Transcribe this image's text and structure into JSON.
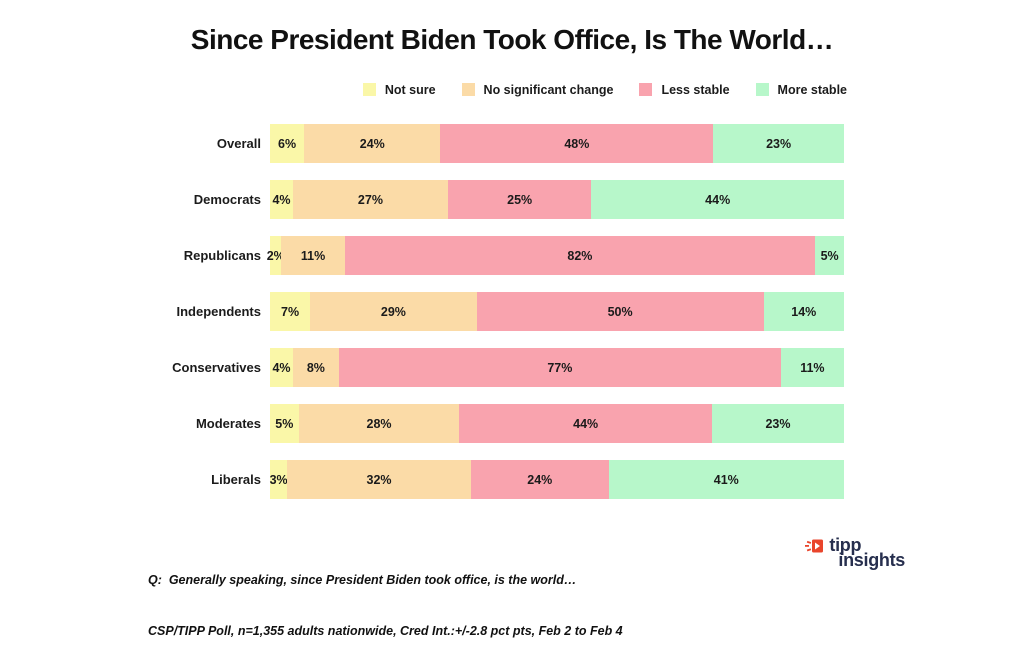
{
  "title": "Since President Biden Took Office, Is The World…",
  "legend": {
    "items": [
      {
        "label": "Not sure",
        "color": "#FAF7A8"
      },
      {
        "label": "No significant change",
        "color": "#FBDBA7"
      },
      {
        "label": "Less stable",
        "color": "#F9A3AE"
      },
      {
        "label": "More stable",
        "color": "#B7F7CA"
      }
    ]
  },
  "chart_data": {
    "type": "bar",
    "stacked": true,
    "orientation": "horizontal",
    "unit": "%",
    "title": "Since President Biden Took Office, Is The World…",
    "categories": [
      "Overall",
      "Democrats",
      "Republicans",
      "Independents",
      "Conservatives",
      "Moderates",
      "Liberals"
    ],
    "series": [
      {
        "name": "Not sure",
        "color": "#FAF7A8",
        "values": [
          6,
          4,
          2,
          7,
          4,
          5,
          3
        ]
      },
      {
        "name": "No significant change",
        "color": "#FBDBA7",
        "values": [
          24,
          27,
          11,
          29,
          8,
          28,
          32
        ]
      },
      {
        "name": "Less stable",
        "color": "#F9A3AE",
        "values": [
          48,
          25,
          82,
          50,
          77,
          44,
          24
        ]
      },
      {
        "name": "More stable",
        "color": "#B7F7CA",
        "values": [
          23,
          44,
          5,
          14,
          11,
          23,
          41
        ]
      }
    ],
    "legend_position": "top-right",
    "grid": false,
    "xlim": [
      0,
      100
    ]
  },
  "footer": {
    "line1": "Q:  Generally speaking, since President Biden took office, is the world…",
    "line2": "CSP/TIPP Poll, n=1,355 adults nationwide, Cred Int.:+/-2.8 pct pts, Feb 2 to Feb 4"
  },
  "logo": {
    "word1": "tipp",
    "word2": "insights",
    "navy": "#272F4E",
    "red": "#E9452C"
  }
}
